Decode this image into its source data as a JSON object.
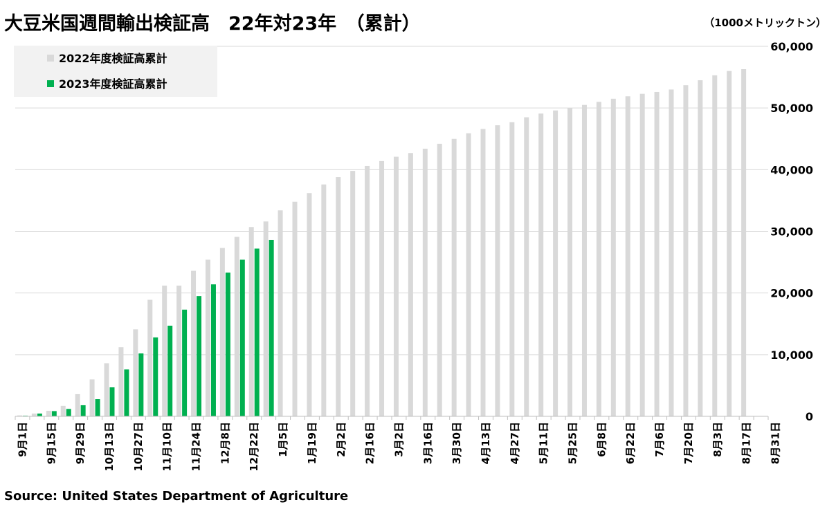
{
  "title": "大豆米国週間輸出検証高　22年対23年　（累計）",
  "unit": "（1000メトリックトン）",
  "source": "Source: United States Department of Agriculture",
  "colors": {
    "series_2022": "#d9d9d9",
    "series_2023": "#00b050",
    "grid": "#d9d9d9",
    "legend_bg": "#f2f2f2"
  },
  "chart_data": {
    "type": "bar",
    "ylim": [
      0,
      60000
    ],
    "yticks": [
      0,
      10000,
      20000,
      30000,
      40000,
      50000,
      60000
    ],
    "ytick_labels": [
      "0",
      "10,000",
      "20,000",
      "30,000",
      "40,000",
      "50,000",
      "60,000"
    ],
    "y_axis_side": "right",
    "grid": true,
    "legend": "top-left",
    "x_tick_labels": [
      "9月1日",
      "9月15日",
      "9月29日",
      "10月13日",
      "10月27日",
      "11月10日",
      "11月24日",
      "12月8日",
      "12月22日",
      "1月5日",
      "1月19日",
      "2月2日",
      "2月16日",
      "3月2日",
      "3月16日",
      "3月30日",
      "4月13日",
      "4月27日",
      "5月11日",
      "5月25日",
      "6月8日",
      "6月22日",
      "7月6日",
      "7月20日",
      "8月3日",
      "8月17日",
      "8月31日"
    ],
    "series": [
      {
        "name": "2022年度検証高累計",
        "values": [
          150,
          450,
          900,
          1700,
          3600,
          6000,
          8600,
          11200,
          14100,
          18900,
          21200,
          21200,
          23600,
          25400,
          27300,
          29100,
          30700,
          31600,
          33400,
          34800,
          36200,
          37600,
          38800,
          39800,
          40600,
          41400,
          42100,
          42700,
          43400,
          44200,
          45000,
          45900,
          46600,
          47200,
          47700,
          48500,
          49100,
          49600,
          50000,
          50500,
          51000,
          51500,
          51900,
          52300,
          52600,
          53000,
          53700,
          54500,
          55300,
          56000,
          56300
        ]
      },
      {
        "name": "2023年度検証高累計",
        "values": [
          100,
          450,
          850,
          1200,
          1800,
          2800,
          4700,
          7600,
          10200,
          12800,
          14700,
          17300,
          19500,
          21400,
          23300,
          25400,
          27200,
          28600
        ]
      }
    ]
  }
}
